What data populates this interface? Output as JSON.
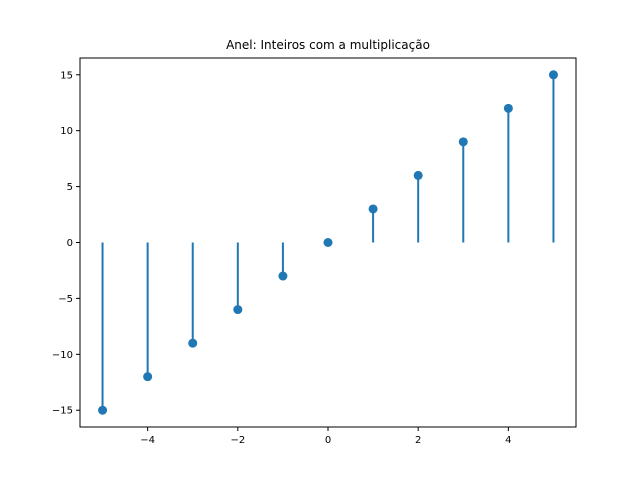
{
  "chart_data": {
    "type": "stem",
    "title": "Anel: Inteiros com a multiplicação",
    "xlabel": "",
    "ylabel": "",
    "x": [
      -5,
      -4,
      -3,
      -2,
      -1,
      0,
      1,
      2,
      3,
      4,
      5
    ],
    "y": [
      -15,
      -12,
      -9,
      -6,
      -3,
      0,
      3,
      6,
      9,
      12,
      15
    ],
    "xlim": [
      -5.5,
      5.5
    ],
    "ylim": [
      -16.5,
      16.5
    ],
    "xticks": [
      -4,
      -2,
      0,
      2,
      4
    ],
    "xtick_labels": [
      "−4",
      "−2",
      "0",
      "2",
      "4"
    ],
    "yticks": [
      -15,
      -10,
      -5,
      0,
      5,
      10,
      15
    ],
    "ytick_labels": [
      "−15",
      "−10",
      "−5",
      "0",
      "5",
      "10",
      "15"
    ],
    "baseline": 0,
    "grid": false,
    "legend": "none",
    "color": "#1f77b4"
  }
}
